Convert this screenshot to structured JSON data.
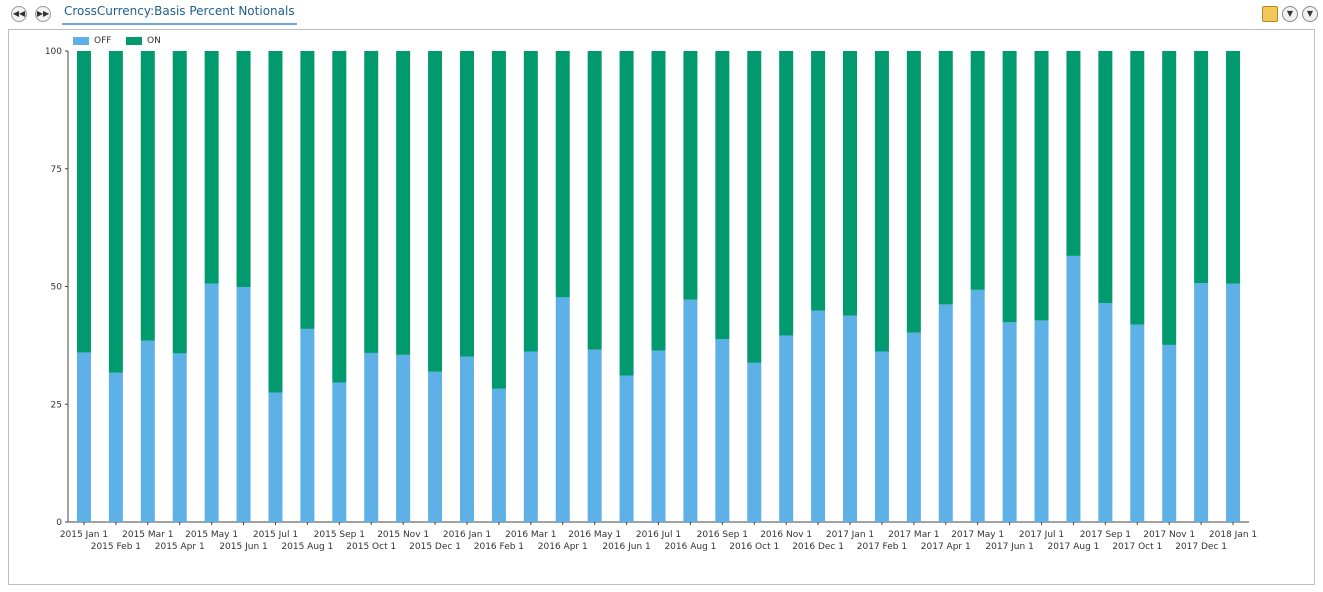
{
  "toolbar": {
    "back_icon": "rewind-icon",
    "forward_icon": "fast-forward-icon",
    "tab_title": "CrossCurrency:Basis Percent Notionals",
    "right_icons": [
      "notes-icon",
      "collapse-icon",
      "expand-icon"
    ]
  },
  "legend": [
    {
      "label": "OFF",
      "color": "#5db1e6"
    },
    {
      "label": "ON",
      "color": "#009a6e"
    }
  ],
  "chart_data": {
    "type": "bar",
    "stacked": true,
    "percent": true,
    "categories": [
      "2015 Jan 1",
      "2015 Feb 1",
      "2015 Mar 1",
      "2015 Apr 1",
      "2015 May 1",
      "2015 Jun 1",
      "2015 Jul 1",
      "2015 Aug 1",
      "2015 Sep 1",
      "2015 Oct 1",
      "2015 Nov 1",
      "2015 Dec 1",
      "2016 Jan 1",
      "2016 Feb 1",
      "2016 Mar 1",
      "2016 Apr 1",
      "2016 May 1",
      "2016 Jun 1",
      "2016 Jul 1",
      "2016 Aug 1",
      "2016 Sep 1",
      "2016 Oct 1",
      "2016 Nov 1",
      "2016 Dec 1",
      "2017 Jan 1",
      "2017 Feb 1",
      "2017 Mar 1",
      "2017 Apr 1",
      "2017 May 1",
      "2017 Jun 1",
      "2017 Jul 1",
      "2017 Aug 1",
      "2017 Sep 1",
      "2017 Oct 1",
      "2017 Nov 1",
      "2017 Dec 1",
      "2018 Jan 1"
    ],
    "series": [
      {
        "name": "OFF",
        "color": "#5db1e6",
        "values": [
          36,
          31.7,
          38.5,
          35.8,
          50.6,
          49.9,
          27.5,
          41,
          29.6,
          35.9,
          35.5,
          31.9,
          35.1,
          28.3,
          36.2,
          47.7,
          36.6,
          31.1,
          36.4,
          47.2,
          38.8,
          33.8,
          39.6,
          44.9,
          43.8,
          36.2,
          40.2,
          46.2,
          49.3,
          42.4,
          42.8,
          56.5,
          46.5,
          41.9,
          37.6,
          50.7,
          50.6
        ]
      },
      {
        "name": "ON",
        "color": "#009a6e",
        "values": [
          64,
          68.3,
          61.5,
          64.2,
          49.4,
          50.1,
          72.5,
          59,
          70.4,
          64.1,
          64.5,
          68.1,
          64.9,
          71.7,
          63.8,
          52.3,
          63.4,
          68.9,
          63.6,
          52.8,
          61.2,
          66.2,
          60.4,
          55.1,
          56.2,
          63.8,
          59.8,
          53.8,
          50.7,
          57.6,
          57.2,
          43.5,
          53.5,
          58.1,
          62.4,
          49.3,
          49.4
        ]
      }
    ],
    "yticks": [
      "0",
      "25",
      "50",
      "75",
      "100"
    ],
    "ylim": [
      0,
      100
    ],
    "grid": false,
    "legend_position": "top-left"
  }
}
